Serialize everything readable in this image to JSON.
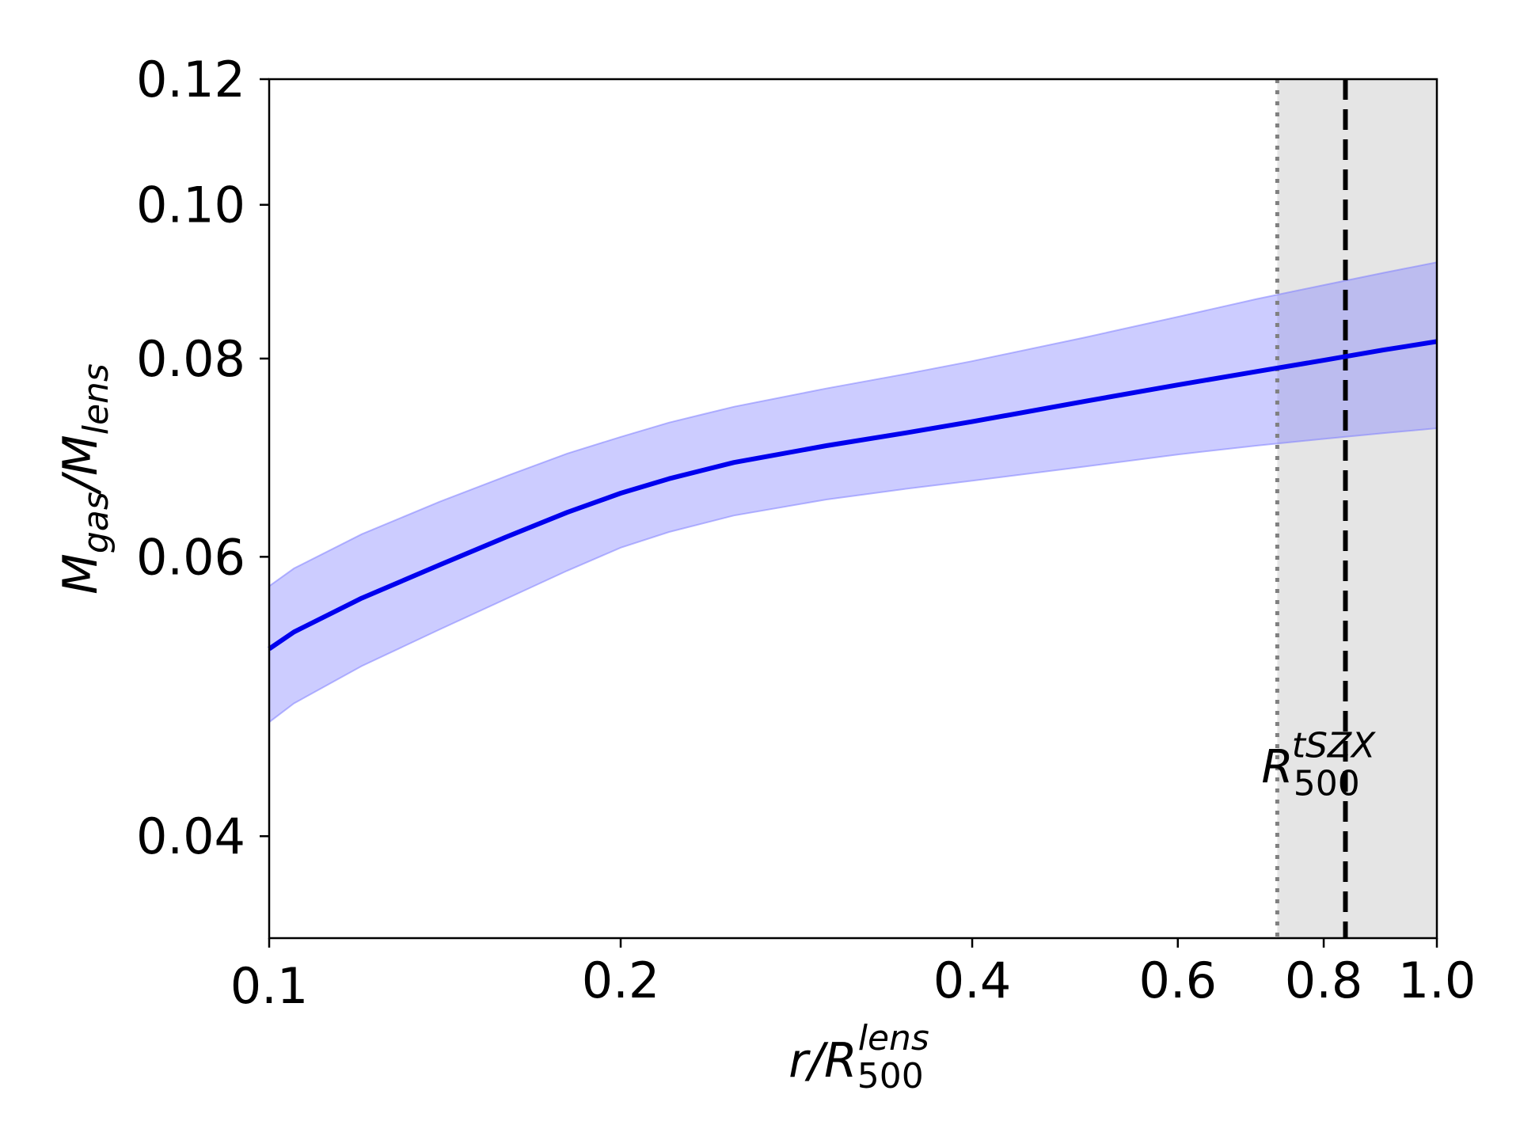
{
  "chart_data": {
    "type": "line",
    "xscale": "log",
    "yscale": "log",
    "xlim": [
      0.1,
      1.0
    ],
    "ylim": [
      0.0345,
      0.12
    ],
    "xticks": [
      {
        "value": 0.1,
        "label": "0.1"
      },
      {
        "value": 0.2,
        "label": "0.2"
      },
      {
        "value": 0.4,
        "label": "0.4"
      },
      {
        "value": 0.6,
        "label": "0.6"
      },
      {
        "value": 0.8,
        "label": "0.8"
      },
      {
        "value": 1.0,
        "label": "1.0"
      }
    ],
    "yticks": [
      {
        "value": 0.04,
        "label": "0.04"
      },
      {
        "value": 0.06,
        "label": "0.06"
      },
      {
        "value": 0.08,
        "label": "0.08"
      },
      {
        "value": 0.1,
        "label": "0.10"
      },
      {
        "value": 0.12,
        "label": "0.12"
      }
    ],
    "xlabel": {
      "main": "r/R",
      "sub": "500",
      "sup": "lens"
    },
    "ylabel": {
      "main": "M",
      "sub1": "gas",
      "mid": "/M",
      "sub2": "lens"
    },
    "grid": false,
    "series": [
      {
        "color": "#0000ee",
        "band_color": "#8080ff",
        "x": [
          0.1,
          0.105,
          0.12,
          0.14,
          0.16,
          0.18,
          0.2,
          0.22,
          0.25,
          0.3,
          0.35,
          0.4,
          0.5,
          0.6,
          0.7,
          0.8,
          0.9,
          1.0
        ],
        "y": [
          0.0525,
          0.0538,
          0.0565,
          0.0593,
          0.0618,
          0.064,
          0.0658,
          0.0672,
          0.0688,
          0.0705,
          0.0718,
          0.073,
          0.0752,
          0.077,
          0.0785,
          0.0798,
          0.081,
          0.082
        ],
        "lower": [
          0.0472,
          0.0485,
          0.0512,
          0.054,
          0.0565,
          0.0588,
          0.0608,
          0.0622,
          0.0637,
          0.0652,
          0.0662,
          0.067,
          0.0684,
          0.0696,
          0.0705,
          0.0712,
          0.0718,
          0.0723
        ],
        "upper": [
          0.0575,
          0.059,
          0.062,
          0.065,
          0.0675,
          0.0697,
          0.0714,
          0.0729,
          0.0746,
          0.0766,
          0.0782,
          0.0797,
          0.0825,
          0.085,
          0.0872,
          0.089,
          0.0906,
          0.092
        ]
      }
    ],
    "shaded_region": {
      "x_from": 0.73,
      "x_to": 1.0,
      "color": "#e5e5e5"
    },
    "vlines": [
      {
        "x": 0.73,
        "style": "dotted",
        "color": "#808080"
      },
      {
        "x": 0.835,
        "style": "dashed",
        "color": "#000000"
      }
    ],
    "annotation": {
      "main": "R",
      "sub": "500",
      "sup": "tSZX",
      "x": 0.73,
      "y": 0.045
    }
  }
}
